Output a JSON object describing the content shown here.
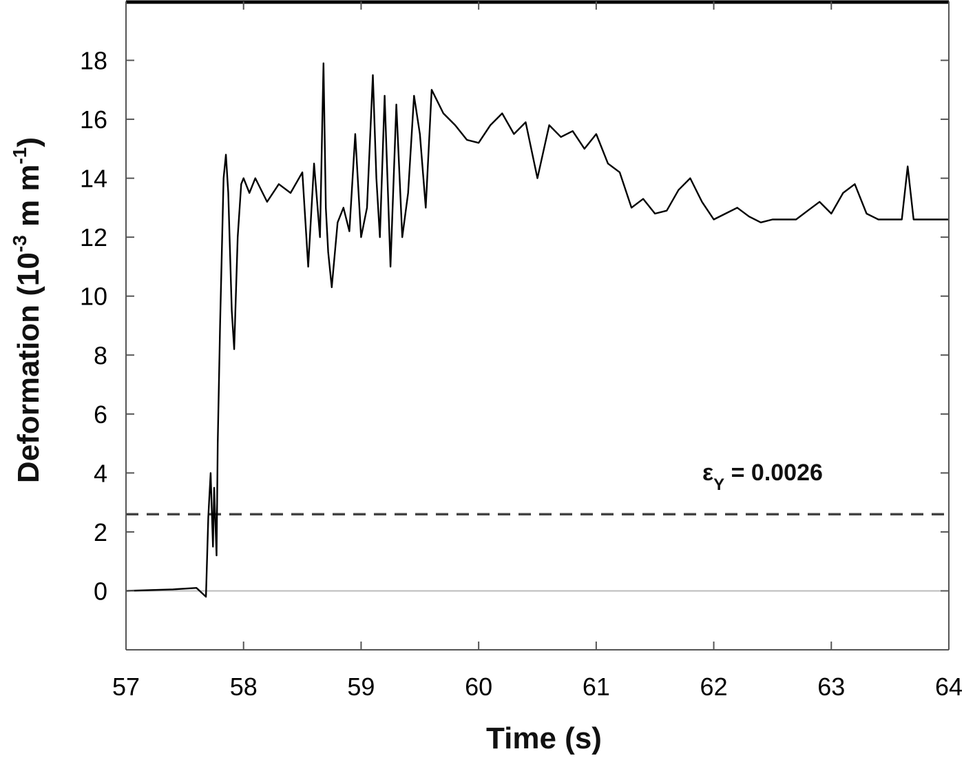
{
  "chart_data": {
    "type": "line",
    "xlabel": "Time (s)",
    "ylabel": {
      "main": "Deformation (10",
      "exp1": "-3",
      "mid": " m m",
      "exp2": "-1",
      "end": ")"
    },
    "xlim": [
      57,
      64
    ],
    "ylim": [
      -2,
      20
    ],
    "x_ticks": [
      57,
      58,
      59,
      60,
      61,
      62,
      63,
      64
    ],
    "x_tick_labels": [
      "57",
      "58",
      "59",
      "60",
      "61",
      "62",
      "63",
      "64"
    ],
    "y_ticks": [
      0,
      2,
      4,
      6,
      8,
      10,
      12,
      14,
      16,
      18
    ],
    "y_tick_labels": [
      "0",
      "2",
      "4",
      "6",
      "8",
      "10",
      "12",
      "14",
      "16",
      "18"
    ],
    "grid": false,
    "colors": {
      "line": "#000000",
      "threshold": "#444444",
      "zero_line": "#bbbbbb",
      "frame": "#555555"
    },
    "series": [
      {
        "values_x": [
          57.0,
          57.4,
          57.6,
          57.68,
          57.7,
          57.72,
          57.74,
          57.75,
          57.77,
          57.78,
          57.8,
          57.83,
          57.85,
          57.87,
          57.9,
          57.92,
          57.95,
          57.98,
          58.0,
          58.05,
          58.1,
          58.2,
          58.3,
          58.4,
          58.5,
          58.55,
          58.6,
          58.65,
          58.68,
          58.7,
          58.72,
          58.75,
          58.8,
          58.85,
          58.9,
          58.95,
          59.0,
          59.05,
          59.1,
          59.13,
          59.16,
          59.2,
          59.25,
          59.3,
          59.35,
          59.4,
          59.45,
          59.5,
          59.55,
          59.6,
          59.7,
          59.8,
          59.9,
          60.0,
          60.1,
          60.2,
          60.3,
          60.4,
          60.5,
          60.6,
          60.7,
          60.8,
          60.9,
          61.0,
          61.1,
          61.2,
          61.3,
          61.4,
          61.5,
          61.6,
          61.7,
          61.8,
          61.9,
          62.0,
          62.1,
          62.2,
          62.3,
          62.4,
          62.5,
          62.6,
          62.7,
          62.8,
          62.9,
          63.0,
          63.1,
          63.2,
          63.3,
          63.4,
          63.5,
          63.6,
          63.65,
          63.7,
          63.8,
          64.0
        ],
        "values_y": [
          0.0,
          0.05,
          0.1,
          -0.2,
          2.5,
          4.0,
          1.5,
          3.5,
          1.2,
          5.0,
          9.0,
          14.0,
          14.8,
          13.5,
          9.5,
          8.2,
          12.0,
          13.8,
          14.0,
          13.5,
          14.0,
          13.2,
          13.8,
          13.5,
          14.2,
          11.0,
          14.5,
          12.0,
          17.9,
          13.0,
          11.5,
          10.3,
          12.5,
          13.0,
          12.2,
          15.5,
          12.0,
          13.0,
          17.5,
          14.0,
          12.0,
          16.8,
          11.0,
          16.5,
          12.0,
          13.5,
          16.8,
          15.5,
          13.0,
          17.0,
          16.2,
          15.8,
          15.3,
          15.2,
          15.8,
          16.2,
          15.5,
          15.9,
          14.0,
          15.8,
          15.4,
          15.6,
          15.0,
          15.5,
          14.5,
          14.2,
          13.0,
          13.3,
          12.8,
          12.9,
          13.6,
          14.0,
          13.2,
          12.6,
          12.8,
          13.0,
          12.7,
          12.5,
          12.6,
          12.6,
          12.6,
          12.9,
          13.2,
          12.8,
          13.5,
          13.8,
          12.8,
          12.6,
          12.6,
          12.6,
          14.4,
          12.6,
          12.6,
          12.6
        ]
      }
    ],
    "threshold": {
      "value": 2.6,
      "style": "dashed"
    },
    "zero_line": {
      "value": 0
    },
    "annotation": {
      "symbol": "ε",
      "subscript": "Y",
      "text": " = 0.0026"
    }
  }
}
